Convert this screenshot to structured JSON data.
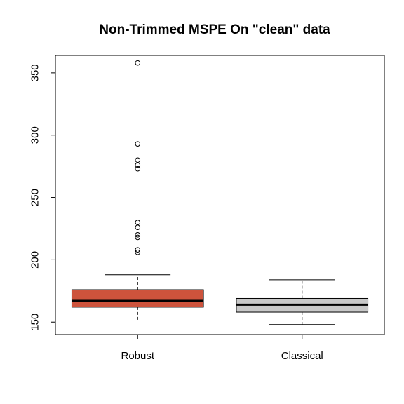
{
  "chart_data": {
    "type": "boxplot",
    "title": "Non-Trimmed MSPE On \"clean\" data",
    "xlabel": "",
    "ylabel": "",
    "categories": [
      "Robust",
      "Classical"
    ],
    "ylim": [
      140,
      364
    ],
    "yticks": [
      150,
      200,
      250,
      300,
      350
    ],
    "grid": false,
    "legend": "none",
    "series": [
      {
        "category": "Robust",
        "color": "#cd533c",
        "whisker_low": 151,
        "q1": 162,
        "median": 167,
        "q3": 176,
        "whisker_high": 188,
        "outliers": [
          358,
          293,
          280,
          276,
          273,
          230,
          226,
          220,
          218,
          208,
          206
        ]
      },
      {
        "category": "Classical",
        "color": "#c8c8c8",
        "whisker_low": 148,
        "q1": 158,
        "median": 164,
        "q3": 169,
        "whisker_high": 184,
        "outliers": []
      }
    ]
  }
}
